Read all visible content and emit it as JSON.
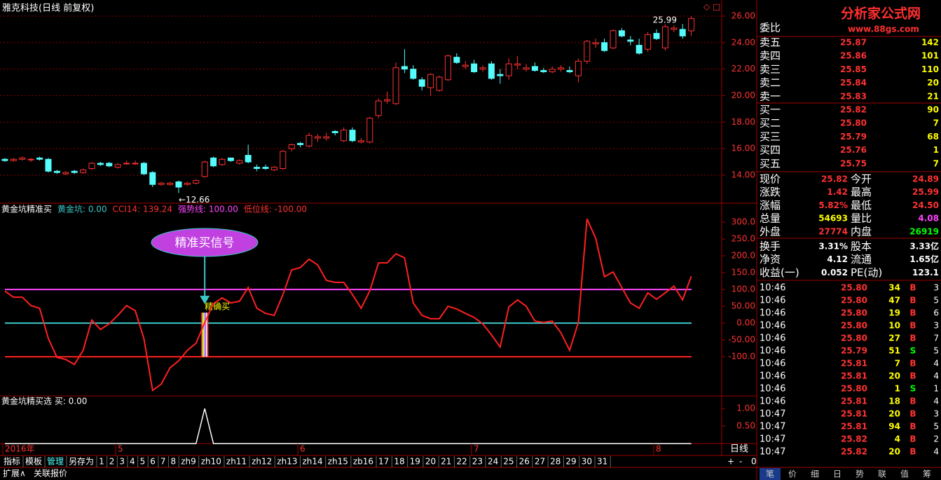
{
  "title": "雅克科技(日线 前复权)",
  "logo": {
    "name": "分析家公式网",
    "url": "www.88gs.com"
  },
  "price_panel": {
    "ylim": [
      12.15,
      26.95
    ],
    "yticks": [
      {
        "value": 26,
        "label": "26.00"
      },
      {
        "value": 24,
        "label": "24.00"
      },
      {
        "value": 22,
        "label": "22.00"
      },
      {
        "value": 20,
        "label": "20.00"
      },
      {
        "value": 18,
        "label": "18.00"
      },
      {
        "value": 16,
        "label": "16.00"
      },
      {
        "value": 14,
        "label": "14.00"
      }
    ],
    "up_color": "#ff3232",
    "down_color": "#54fcfc",
    "annotations": {
      "high": "25.99",
      "low": "←12.66"
    },
    "candles": [
      [
        15.2,
        15.3,
        15.0,
        15.1
      ],
      [
        15.1,
        15.3,
        15.0,
        15.2
      ],
      [
        15.2,
        15.4,
        15.1,
        15.3
      ],
      [
        15.2,
        15.3,
        15.0,
        15.2
      ],
      [
        15.3,
        15.4,
        15.1,
        15.2
      ],
      [
        15.2,
        15.3,
        14.2,
        14.3
      ],
      [
        14.3,
        14.4,
        14.1,
        14.2
      ],
      [
        14.1,
        14.3,
        14.0,
        14.2
      ],
      [
        14.3,
        14.4,
        14.1,
        14.2
      ],
      [
        14.2,
        14.5,
        14.1,
        14.4
      ],
      [
        14.5,
        15.0,
        14.4,
        14.9
      ],
      [
        14.9,
        15.0,
        14.7,
        14.8
      ],
      [
        14.9,
        15.0,
        14.6,
        14.7
      ],
      [
        14.6,
        14.9,
        14.5,
        14.8
      ],
      [
        14.9,
        15.1,
        14.8,
        14.9
      ],
      [
        14.9,
        15.1,
        14.8,
        14.9
      ],
      [
        14.9,
        15.0,
        14.0,
        14.1
      ],
      [
        14.2,
        14.3,
        13.1,
        13.3
      ],
      [
        13.3,
        13.5,
        13.2,
        13.4
      ],
      [
        13.3,
        13.5,
        13.2,
        13.4
      ],
      [
        13.5,
        13.6,
        12.66,
        13.1
      ],
      [
        13.3,
        13.5,
        13.2,
        13.4
      ],
      [
        13.4,
        13.7,
        13.3,
        13.6
      ],
      [
        13.9,
        15.1,
        13.8,
        15.0
      ],
      [
        15.3,
        15.4,
        14.6,
        14.7
      ],
      [
        14.8,
        15.3,
        14.7,
        15.2
      ],
      [
        15.3,
        15.3,
        15.0,
        15.1
      ],
      [
        14.9,
        15.2,
        14.8,
        15.1
      ],
      [
        15.5,
        16.3,
        14.9,
        15.0
      ],
      [
        14.6,
        14.8,
        14.3,
        14.5
      ],
      [
        14.6,
        14.8,
        14.4,
        14.5
      ],
      [
        14.4,
        14.7,
        14.3,
        14.6
      ],
      [
        14.5,
        15.9,
        14.4,
        15.8
      ],
      [
        16.0,
        16.4,
        15.8,
        16.3
      ],
      [
        16.4,
        16.5,
        16.1,
        16.3
      ],
      [
        16.2,
        17.2,
        16.1,
        17.0
      ],
      [
        16.8,
        17.1,
        16.5,
        16.9
      ],
      [
        16.8,
        17.2,
        16.6,
        16.9
      ],
      [
        17.3,
        17.4,
        17.0,
        17.2
      ],
      [
        16.6,
        17.6,
        16.5,
        17.4
      ],
      [
        17.4,
        17.6,
        16.5,
        16.6
      ],
      [
        16.5,
        16.8,
        16.4,
        16.6
      ],
      [
        16.5,
        18.4,
        16.4,
        18.3
      ],
      [
        18.5,
        19.8,
        18.3,
        19.6
      ],
      [
        19.6,
        20.3,
        19.4,
        19.7
      ],
      [
        19.4,
        22.5,
        19.3,
        22.1
      ],
      [
        22.2,
        23.5,
        21.7,
        22.0
      ],
      [
        22.0,
        22.3,
        21.2,
        21.3
      ],
      [
        21.2,
        21.4,
        20.4,
        20.7
      ],
      [
        20.6,
        21.7,
        20.0,
        21.6
      ],
      [
        20.4,
        21.5,
        20.3,
        21.4
      ],
      [
        21.2,
        23.1,
        21.1,
        23.0
      ],
      [
        22.9,
        23.2,
        22.4,
        22.5
      ],
      [
        22.2,
        22.6,
        22.0,
        22.3
      ],
      [
        22.4,
        22.7,
        21.7,
        21.8
      ],
      [
        22.0,
        22.3,
        21.8,
        22.1
      ],
      [
        22.4,
        22.6,
        21.2,
        21.3
      ],
      [
        21.6,
        22.0,
        20.9,
        21.5
      ],
      [
        21.5,
        22.8,
        21.2,
        22.4
      ],
      [
        22.3,
        23.0,
        22.0,
        22.4
      ],
      [
        22.0,
        22.4,
        21.8,
        22.1
      ],
      [
        22.2,
        22.5,
        21.8,
        21.9
      ],
      [
        21.9,
        22.1,
        21.7,
        21.8
      ],
      [
        21.8,
        22.2,
        21.7,
        22.0
      ],
      [
        22.0,
        22.3,
        21.8,
        22.1
      ],
      [
        21.9,
        22.2,
        21.7,
        21.8
      ],
      [
        21.5,
        22.8,
        21.0,
        22.6
      ],
      [
        22.6,
        24.2,
        22.4,
        24.1
      ],
      [
        23.9,
        24.3,
        23.6,
        24.0
      ],
      [
        24.0,
        24.3,
        23.3,
        23.4
      ],
      [
        23.6,
        25.0,
        23.5,
        24.9
      ],
      [
        24.9,
        25.1,
        24.4,
        24.5
      ],
      [
        24.2,
        24.5,
        23.8,
        24.1
      ],
      [
        23.8,
        24.3,
        23.1,
        23.2
      ],
      [
        23.5,
        24.8,
        23.3,
        24.6
      ],
      [
        24.7,
        25.0,
        24.2,
        24.3
      ],
      [
        23.6,
        25.4,
        23.4,
        25.2
      ],
      [
        25.0,
        25.3,
        24.8,
        25.1
      ],
      [
        25.0,
        25.4,
        24.3,
        24.5
      ],
      [
        24.89,
        25.99,
        24.5,
        25.82
      ]
    ]
  },
  "indicator_panel": {
    "name": "黄金坑精准买",
    "legend": [
      {
        "text": "黄金坑: 0.00",
        "color": "#3cc8c8"
      },
      {
        "text": "CCI14: 139.24",
        "color": "#ff3232"
      },
      {
        "text": "强势线: 100.00",
        "color": "#ff44ff"
      },
      {
        "text": "低位线: -100.00",
        "color": "#ff3232"
      }
    ],
    "ylim": [
      -206,
      346
    ],
    "yticks": [
      {
        "value": 300,
        "label": "300.0"
      },
      {
        "value": 250,
        "label": "250.0"
      },
      {
        "value": 200,
        "label": "200.0"
      },
      {
        "value": 150,
        "label": "150.0"
      },
      {
        "value": 100,
        "label": "100.0"
      },
      {
        "value": 50,
        "label": "50.00"
      },
      {
        "value": 0,
        "label": "0.00"
      },
      {
        "value": -50,
        "label": "-50.00"
      },
      {
        "value": -100,
        "label": "-100.0"
      }
    ],
    "levels": [
      {
        "value": 100,
        "color": "#ff44ff"
      },
      {
        "value": 0,
        "color": "#3cc8c8"
      },
      {
        "value": -100,
        "color": "#ff2020"
      }
    ],
    "cci_color": "#ff2020",
    "cci": [
      95,
      77,
      77,
      52,
      44,
      -46,
      -102,
      -108,
      -123,
      -81,
      9,
      -19,
      -2,
      23,
      52,
      37,
      -46,
      -200,
      -181,
      -133,
      -112,
      -81,
      -60,
      2,
      58,
      75,
      60,
      65,
      106,
      44,
      29,
      23,
      85,
      158,
      165,
      190,
      173,
      127,
      121,
      121,
      85,
      44,
      96,
      179,
      179,
      206,
      194,
      60,
      23,
      13,
      13,
      50,
      42,
      29,
      17,
      -2,
      -35,
      -71,
      48,
      69,
      50,
      6,
      2,
      6,
      -29,
      -81,
      2,
      310,
      252,
      138,
      152,
      106,
      60,
      44,
      90,
      71,
      90,
      110,
      69,
      139.24
    ],
    "signal_label": "精确买",
    "callout": "精准买信号"
  },
  "signal_panel": {
    "name": "黄金坑精买选 买: 0.00",
    "ylim": [
      0,
      1.3
    ],
    "yticks": [
      {
        "value": 1,
        "label": "1.00"
      },
      {
        "value": 0.5,
        "label": "0.50"
      }
    ],
    "values": [
      0,
      0,
      0,
      0,
      0,
      0,
      0,
      0,
      0,
      0,
      0,
      0,
      0,
      0,
      0,
      0,
      0,
      0,
      0,
      0,
      0,
      0,
      0,
      1,
      0,
      0,
      0,
      0,
      0,
      0,
      0,
      0,
      0,
      0,
      0,
      0,
      0,
      0,
      0,
      0,
      0,
      0,
      0,
      0,
      0,
      0,
      0,
      0,
      0,
      0,
      0,
      0,
      0,
      0,
      0,
      0,
      0,
      0,
      0,
      0,
      0,
      0,
      0,
      0,
      0,
      0,
      0,
      0,
      0,
      0,
      0,
      0,
      0,
      0,
      0,
      0,
      0,
      0,
      0,
      0
    ]
  },
  "date_axis": [
    "2016年",
    "5",
    "6",
    "7",
    "8"
  ],
  "period": "日线",
  "zoom": [
    "+",
    "-",
    "0"
  ],
  "toolbar": [
    "指标",
    "模板",
    "管理",
    "另存为",
    "1",
    "2",
    "3",
    "4",
    "5",
    "6",
    "7",
    "8",
    "zh9",
    "zh10",
    "zh11",
    "zh12",
    "zh13",
    "zh14",
    "zh15",
    "zb16",
    "17",
    "18",
    "19",
    "20",
    "21",
    "22",
    "23",
    "24",
    "25",
    "26",
    "27",
    "28",
    "29",
    "30",
    "31"
  ],
  "footer": [
    "扩展∧",
    "关联报价"
  ],
  "side_tabs": [
    "笔",
    "价",
    "细",
    "日",
    "势",
    "联",
    "值",
    "筹"
  ],
  "order_book": {
    "ratio_label": "委比",
    "sells": [
      [
        "卖五",
        "25.87",
        "142"
      ],
      [
        "卖四",
        "25.86",
        "101"
      ],
      [
        "卖三",
        "25.85",
        "110"
      ],
      [
        "卖二",
        "25.84",
        "20"
      ],
      [
        "卖一",
        "25.83",
        "21"
      ]
    ],
    "buys": [
      [
        "买一",
        "25.82",
        "90"
      ],
      [
        "买二",
        "25.80",
        "7"
      ],
      [
        "买三",
        "25.79",
        "68"
      ],
      [
        "买四",
        "25.76",
        "1"
      ],
      [
        "买五",
        "25.75",
        "7"
      ]
    ]
  },
  "quote": [
    [
      "现价",
      "25.82",
      "今开",
      "24.89"
    ],
    [
      "涨跌",
      "1.42",
      "最高",
      "25.99"
    ],
    [
      "涨幅",
      "5.82%",
      "最低",
      "24.50"
    ],
    [
      "总量",
      "54693",
      "量比",
      "4.08"
    ],
    [
      "外盘",
      "27774",
      "内盘",
      "26919"
    ]
  ],
  "fundamentals": [
    [
      "换手",
      "3.31%",
      "股本",
      "3.33亿"
    ],
    [
      "净资",
      "4.12",
      "流通",
      "1.65亿"
    ],
    [
      "收益(一)",
      "0.052",
      "PE(动)",
      "123.1"
    ]
  ],
  "trades": [
    [
      "10:46",
      "25.80",
      "34",
      "B",
      "3"
    ],
    [
      "10:46",
      "25.80",
      "47",
      "B",
      "5"
    ],
    [
      "10:46",
      "25.80",
      "19",
      "B",
      "6"
    ],
    [
      "10:46",
      "25.80",
      "10",
      "B",
      "3"
    ],
    [
      "10:46",
      "25.80",
      "27",
      "B",
      "7"
    ],
    [
      "10:46",
      "25.79",
      "51",
      "S",
      "5"
    ],
    [
      "10:46",
      "25.81",
      "7",
      "B",
      "4"
    ],
    [
      "10:46",
      "25.81",
      "20",
      "B",
      "4"
    ],
    [
      "10:46",
      "25.80",
      "1",
      "S",
      "1"
    ],
    [
      "10:46",
      "25.81",
      "18",
      "B",
      "4"
    ],
    [
      "10:47",
      "25.81",
      "20",
      "B",
      "3"
    ],
    [
      "10:47",
      "25.81",
      "94",
      "B",
      "5"
    ],
    [
      "10:47",
      "25.82",
      "4",
      "B",
      "2"
    ],
    [
      "10:47",
      "25.82",
      "20",
      "B",
      "4"
    ]
  ]
}
